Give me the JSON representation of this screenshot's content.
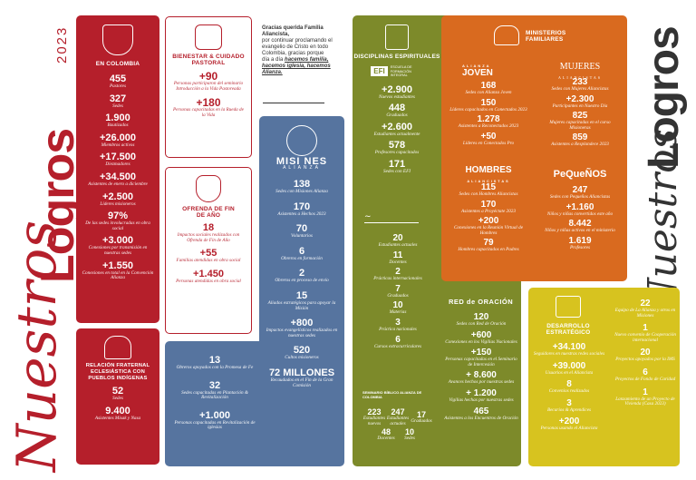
{
  "brand": {
    "nuestros": "Nuestros",
    "logros": "Logros",
    "year": "2023"
  },
  "colors": {
    "red": "#b51f2b",
    "blue": "#56749f",
    "green": "#7d8a2a",
    "orange": "#d96a1f",
    "yellow": "#d7c31f"
  },
  "colombia": {
    "title": "EN COLOMBIA",
    "stats": [
      {
        "v": "455",
        "l": "Pastores"
      },
      {
        "v": "327",
        "l": "Sedes"
      },
      {
        "v": "1.900",
        "l": "Bautizados"
      },
      {
        "v": "+26.000",
        "l": "Miembros activos"
      },
      {
        "v": "+17.500",
        "l": "Diezmadores"
      },
      {
        "v": "+34.500",
        "l": "Asistentes de enero a diciembre"
      },
      {
        "v": "+2.500",
        "l": "Líderes misioneros"
      },
      {
        "v": "97%",
        "l": "De las sedes involucradas en obra social"
      },
      {
        "v": "+3.000",
        "l": "Conexiones por transmisión en nuestras sedes"
      },
      {
        "v": "+1.550",
        "l": "Conexiones en total en la Convención Alianza"
      }
    ]
  },
  "fraternal": {
    "title": "RELACIÓN FRATERNAL ECLESIÁSTICA CON PUEBLOS INDÍGENAS",
    "stats": [
      {
        "v": "52",
        "l": "Sedes"
      },
      {
        "v": "9.400",
        "l": "Asistentes Misak y Nasa"
      }
    ]
  },
  "bienestar": {
    "title": "BIENESTAR & CUIDADO PASTORAL",
    "stats": [
      {
        "v": "+90",
        "l": "Personas participaron del seminario Introducción a la Vida Pastoreada"
      },
      {
        "v": "+180",
        "l": "Personas capacitadas en la Rueda de la Vida"
      }
    ]
  },
  "ofrenda": {
    "title": "OFRENDA DE FIN DE AÑO",
    "stats": [
      {
        "v": "18",
        "l": "Impactos sociales realizados con Ofrenda de Fin de Año"
      },
      {
        "v": "+55",
        "l": "Familias atendidas en obra social"
      },
      {
        "v": "+1.450",
        "l": "Personas atendidas en obra social"
      }
    ]
  },
  "gracias": {
    "bold": "Gracias querida Familia Aliancista,",
    "text": "por continuar proclamando el evangelio de Cristo en todo Colombia, gracias porque día a día",
    "italic": "hacemos familia, hacemos iglesia, hacemos Alianza."
  },
  "misiones": {
    "title": "MISI NES",
    "sub": "ALIANZA",
    "stats": [
      {
        "v": "138",
        "l": "Sedes con Misiones Alianza"
      },
      {
        "v": "170",
        "l": "Asistentes a Hechos 2023"
      },
      {
        "v": "70",
        "l": "Voluntarios"
      },
      {
        "v": "6",
        "l": "Obreros en formación"
      },
      {
        "v": "2",
        "l": "Obreros en proceso de envío"
      },
      {
        "v": "15",
        "l": "Aliados estratégicos para apoyar la Misión"
      },
      {
        "v": "+800",
        "l": "Impactos evangelísticos realizados en nuestras sedes"
      },
      {
        "v": "520",
        "l": "Cultos misioneros"
      },
      {
        "v": "72 MILLONES",
        "l": "Recaudados en el Fin de la Gran Comisión"
      }
    ]
  },
  "bottomblue": {
    "stats": [
      {
        "v": "13",
        "l": "Obreros apoyados con la Promesa de Fe"
      },
      {
        "v": "32",
        "l": "Sedes capacitadas en Plantación & Revitalización"
      },
      {
        "v": "+1.000",
        "l": "Personas capacitadas en Revitalización de iglesias"
      }
    ]
  },
  "disciplinas": {
    "title": "DISCIPLINAS ESPIRITUALES",
    "efi": "EFI",
    "efi_sub": "ESCUELA DE FORMACIÓN INTEGRAL",
    "stats": [
      {
        "v": "+2.900",
        "l": "Nuevos estudiantes"
      },
      {
        "v": "448",
        "l": "Graduados"
      },
      {
        "v": "+2.600",
        "l": "Estudiantes actualmente"
      },
      {
        "v": "578",
        "l": "Profesores capacitados"
      },
      {
        "v": "171",
        "l": "Sedes con EFI"
      }
    ],
    "col2": [
      {
        "v": "20",
        "l": "Estudiantes actuales"
      },
      {
        "v": "11",
        "l": "Docentes"
      },
      {
        "v": "2",
        "l": "Prácticas internacionales"
      },
      {
        "v": "7",
        "l": "Graduados"
      },
      {
        "v": "10",
        "l": "Materias"
      },
      {
        "v": "3",
        "l": "Práctica nacionales"
      },
      {
        "v": "6",
        "l": "Cursos extracurriculares"
      }
    ],
    "red_title": "RED de ORACIÓN",
    "col3": [
      {
        "v": "120",
        "l": "Sedes con Red de Oración"
      },
      {
        "v": "+600",
        "l": "Conexiones en los Vigilias Nacionales"
      },
      {
        "v": "+150",
        "l": "Personas capacitadas en el Seminario de Intercesión"
      },
      {
        "v": "+ 8.600",
        "l": "Avances hechos por nuestras sedes"
      },
      {
        "v": "+ 1.200",
        "l": "Vigilias hechas por nuestras sedes"
      },
      {
        "v": "465",
        "l": "Asistentes a los Encuentros de Oración"
      }
    ],
    "seminario": "SEMINARIO BÍBLICO ALIANZA DE COLOMBIA",
    "sem_stats": [
      {
        "v": "223",
        "l": "Estudiantes nuevos"
      },
      {
        "v": "247",
        "l": "Estudiantes actuales"
      },
      {
        "v": "17",
        "l": "Graduados"
      },
      {
        "v": "48",
        "l": "Docentes"
      },
      {
        "v": "10",
        "l": "Sedes"
      }
    ]
  },
  "ministerios": {
    "title": "MINISTERIOS FAMILIARES",
    "joven": "JOVEN",
    "joven_pre": "ALIANZA",
    "mujeres": "MUJERES",
    "mujeres_sub": "ALIANCISTAS",
    "hombres": "HOMBRES",
    "hombres_sub": "ALIANCISTAS",
    "pequenos": "PeQueÑOS",
    "left": [
      {
        "v": "168",
        "l": "Sedes con Alianza Joven"
      },
      {
        "v": "150",
        "l": "Líderes capacitados en Conectados 2023"
      },
      {
        "v": "1.278",
        "l": "Asistentes a Reconectados 2023"
      },
      {
        "v": "+50",
        "l": "Líderes en Conectados Pro"
      }
    ],
    "left2": [
      {
        "v": "115",
        "l": "Sedes con Hombres Aliancistas"
      },
      {
        "v": "170",
        "l": "Asistentes a Proyéctate 2023"
      },
      {
        "v": "+200",
        "l": "Conexiones en la Reunión Virtual de Hombres"
      },
      {
        "v": "79",
        "l": "Hombres capacitados en Padres"
      }
    ],
    "right": [
      {
        "v": "233",
        "l": "Sedes con Mujeres Aliancistas"
      },
      {
        "v": "+2.300",
        "l": "Participantes en Nuestro Día"
      },
      {
        "v": "825",
        "l": "Mujeres capacitadas en el curso Misioneras"
      },
      {
        "v": "859",
        "l": "Asistentes a Resplandece 2023"
      }
    ],
    "right2": [
      {
        "v": "247",
        "l": "Sedes con Pequeños Aliancistas"
      },
      {
        "v": "+1.160",
        "l": "Niños y niñas convertidos este año"
      },
      {
        "v": "8.442",
        "l": "Niños y niñas activos en el ministerio"
      },
      {
        "v": "1.619",
        "l": "Profesores"
      }
    ]
  },
  "desarrollo": {
    "title": "DESARROLLO ESTRATÉGICO",
    "stats": [
      {
        "v": "+34.100",
        "l": "Seguidores en nuestras redes sociales"
      },
      {
        "v": "+39.000",
        "l": "Usuarios en el Aliancista"
      },
      {
        "v": "8",
        "l": "Convenios realizados"
      },
      {
        "v": "3",
        "l": "Becarios & Aprendices"
      },
      {
        "v": "+200",
        "l": "Personas usando el Aliancista"
      }
    ],
    "right": [
      {
        "v": "22",
        "l": "Equipo de La Alianza y otros en Misiones"
      },
      {
        "v": "1",
        "l": "Nuevo convenio de Cooperación internacional"
      },
      {
        "v": "20",
        "l": "Proyectos apoyados por la IMS"
      },
      {
        "v": "6",
        "l": "Proyectos de Fondo de Caridad"
      },
      {
        "v": "1",
        "l": "Lanzamiento de un Proyecto de Vivienda (Casa 2023)"
      }
    ]
  }
}
